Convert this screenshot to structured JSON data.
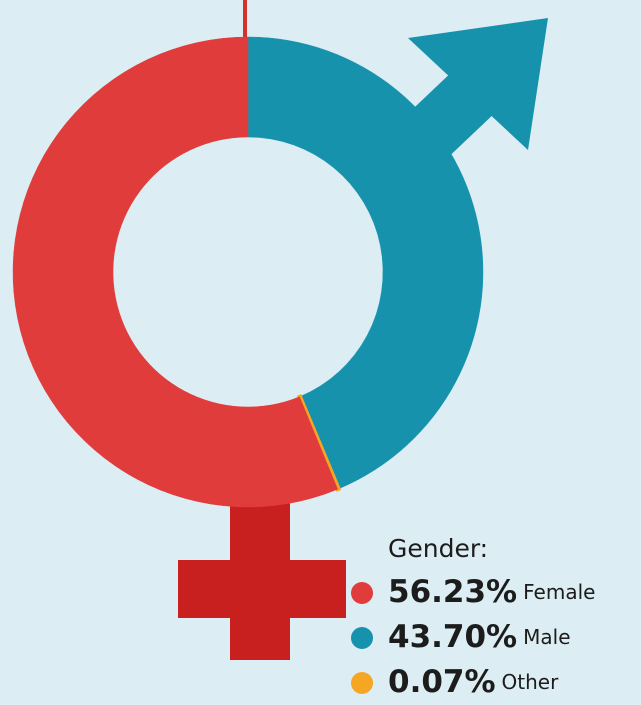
{
  "chart_data": {
    "type": "donut",
    "legend_title": "Gender:",
    "categories": [
      "Female",
      "Male",
      "Other"
    ],
    "values": [
      56.23,
      43.7,
      0.07
    ],
    "value_labels": [
      "56.23%",
      "43.70%",
      "0.07%"
    ],
    "colors": [
      "#e03c3c",
      "#1792ad",
      "#f5a623"
    ],
    "legend": "bottom-right"
  }
}
